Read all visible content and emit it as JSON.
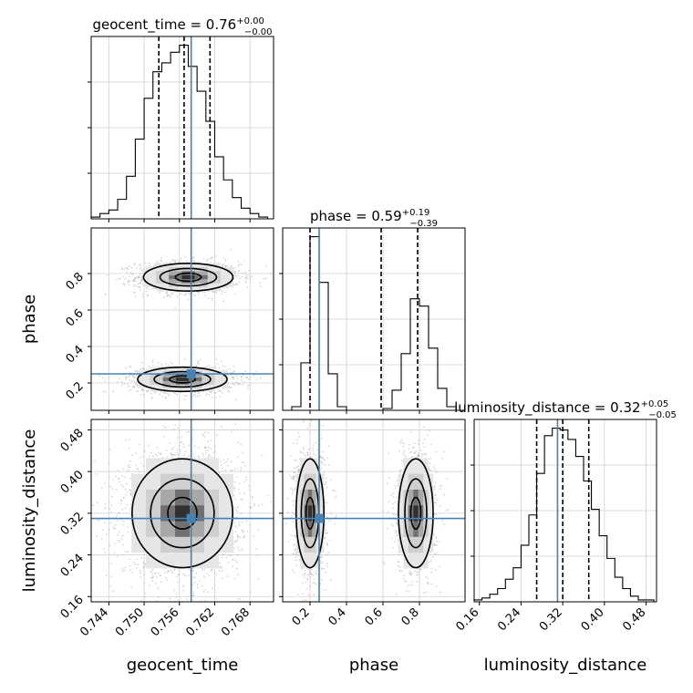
{
  "chart_data": {
    "type": "corner",
    "parameters": [
      "geocent_time",
      "phase",
      "luminosity_distance"
    ],
    "injected_values": {
      "geocent_time": 0.758,
      "phase": 0.25,
      "luminosity_distance": 0.31
    },
    "diagonal": [
      {
        "parameter": "geocent_time",
        "title_base": "geocent_time = 0.76",
        "title_sup": "+0.00",
        "title_sub": "−0.00",
        "range": [
          0.741,
          0.772
        ],
        "bins": [
          0.741,
          0.7425,
          0.744,
          0.7455,
          0.747,
          0.7485,
          0.75,
          0.7515,
          0.753,
          0.7545,
          0.756,
          0.7575,
          0.759,
          0.7605,
          0.762,
          0.7635,
          0.765,
          0.7665,
          0.768,
          0.7695,
          0.771
        ],
        "counts": [
          1,
          3,
          5,
          11,
          24,
          45,
          68,
          83,
          88,
          94,
          98,
          86,
          72,
          55,
          35,
          22,
          12,
          6,
          3,
          1
        ],
        "quantiles": [
          0.7525,
          0.7568,
          0.7612
        ]
      },
      {
        "parameter": "phase",
        "title_base": "phase = 0.59",
        "title_sup": "+0.19",
        "title_sub": "−0.39",
        "range": [
          0.05,
          1.05
        ],
        "bins": [
          0.1,
          0.15,
          0.2,
          0.25,
          0.3,
          0.35,
          0.4,
          0.45,
          0.5,
          0.55,
          0.6,
          0.65,
          0.7,
          0.75,
          0.8,
          0.85,
          0.9,
          0.95,
          1.0
        ],
        "counts": [
          2,
          26,
          95,
          70,
          20,
          2,
          0,
          0,
          0,
          0,
          1,
          11,
          31,
          61,
          57,
          34,
          12,
          2
        ],
        "quantiles": [
          0.2,
          0.59,
          0.79
        ]
      },
      {
        "parameter": "luminosity_distance",
        "title_base": "luminosity_distance = 0.32",
        "title_sup": "+0.05",
        "title_sub": "−0.05",
        "range": [
          0.15,
          0.5
        ],
        "bins": [
          0.15,
          0.165,
          0.18,
          0.195,
          0.21,
          0.225,
          0.24,
          0.255,
          0.27,
          0.285,
          0.3,
          0.315,
          0.33,
          0.345,
          0.36,
          0.375,
          0.39,
          0.405,
          0.42,
          0.435,
          0.45,
          0.465,
          0.48,
          0.495
        ],
        "counts": [
          1,
          2,
          4,
          7,
          12,
          18,
          30,
          46,
          68,
          88,
          92,
          91,
          86,
          77,
          64,
          49,
          35,
          23,
          13,
          7,
          3,
          1,
          1
        ],
        "quantiles": [
          0.27,
          0.32,
          0.37
        ]
      }
    ],
    "pairs": [
      {
        "x": "geocent_time",
        "y": "phase",
        "modes": [
          {
            "cx": 0.7575,
            "cy": 0.78,
            "sx": 0.004,
            "sy": 0.04,
            "w": 0.55
          },
          {
            "cx": 0.7565,
            "cy": 0.22,
            "sx": 0.004,
            "sy": 0.035,
            "w": 0.45
          }
        ]
      },
      {
        "x": "geocent_time",
        "y": "luminosity_distance",
        "modes": [
          {
            "cx": 0.7565,
            "cy": 0.32,
            "sx": 0.0045,
            "sy": 0.055,
            "w": 1.0
          }
        ]
      },
      {
        "x": "phase",
        "y": "luminosity_distance",
        "modes": [
          {
            "cx": 0.2,
            "cy": 0.32,
            "sx": 0.04,
            "sy": 0.055,
            "w": 0.55
          },
          {
            "cx": 0.78,
            "cy": 0.32,
            "sx": 0.05,
            "sy": 0.055,
            "w": 0.45
          }
        ]
      }
    ],
    "axes": {
      "geocent_time": {
        "range": [
          0.741,
          0.772
        ],
        "ticks": [
          0.744,
          0.75,
          0.756,
          0.762,
          0.768
        ],
        "tick_labels": [
          "0.744",
          "0.750",
          "0.756",
          "0.762",
          "0.768"
        ]
      },
      "phase": {
        "range": [
          0.05,
          1.05
        ],
        "ticks": [
          0.2,
          0.4,
          0.6,
          0.8
        ],
        "tick_labels": [
          "0.2",
          "0.4",
          "0.6",
          "0.8"
        ]
      },
      "luminosity_distance": {
        "range": [
          0.15,
          0.5
        ],
        "ticks": [
          0.16,
          0.24,
          0.32,
          0.4,
          0.48
        ],
        "tick_labels": [
          "0.16",
          "0.24",
          "0.32",
          "0.40",
          "0.48"
        ]
      }
    },
    "xlabels": [
      "geocent_time",
      "phase",
      "luminosity_distance"
    ],
    "ylabels": [
      "phase",
      "luminosity_distance"
    ],
    "grid": true,
    "injection_color": "#4682b4"
  }
}
